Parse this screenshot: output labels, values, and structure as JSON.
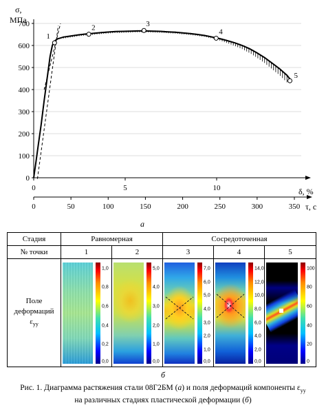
{
  "chart_data": {
    "type": "line",
    "ylabel_symbol": "σ,",
    "ylabel_unit": "МПа",
    "xlabel_delta": "δ, %",
    "xlabel_tau": "τ, с",
    "ylim": [
      0,
      700
    ],
    "y_ticks": [
      "0",
      "100",
      "200",
      "300",
      "400",
      "500",
      "600",
      "700"
    ],
    "delta_ticks": [
      "0",
      "5",
      "10"
    ],
    "delta_tick_values": [
      0,
      5,
      10
    ],
    "tau_ticks": [
      "0",
      "50",
      "100",
      "150",
      "200",
      "250",
      "300",
      "350"
    ],
    "tau_tick_values": [
      0,
      50,
      100,
      150,
      200,
      250,
      300,
      350
    ],
    "tau_lim": [
      0,
      350
    ],
    "curve_tau": [
      0,
      3,
      6,
      10,
      14,
      18,
      22,
      25,
      28,
      32,
      40,
      50,
      60,
      70,
      80,
      90,
      100,
      110,
      120,
      130,
      140,
      150,
      160,
      170,
      180,
      190,
      200,
      210,
      220,
      230,
      240,
      250,
      260,
      270,
      280,
      290,
      300,
      310,
      320,
      330,
      340,
      346
    ],
    "curve_sigma": [
      0,
      70,
      145,
      240,
      350,
      450,
      550,
      600,
      620,
      630,
      638,
      643,
      648,
      652,
      655,
      658,
      661,
      663,
      664,
      665,
      666,
      666,
      665,
      664,
      662,
      660,
      657,
      654,
      650,
      645,
      638,
      631,
      622,
      612,
      600,
      585,
      566,
      545,
      520,
      495,
      465,
      440
    ],
    "points": [
      {
        "label": "1",
        "tau": 28,
        "sigma": 612
      },
      {
        "label": "2",
        "tau": 74,
        "sigma": 651
      },
      {
        "label": "3",
        "tau": 148,
        "sigma": 668
      },
      {
        "label": "4",
        "tau": 245,
        "sigma": 633
      },
      {
        "label": "5",
        "tau": 344,
        "sigma": 440
      }
    ],
    "sublabel": "а"
  },
  "table": {
    "header_stage": "Стадия",
    "header_point": "№ точки",
    "stage_uniform": "Равномерная",
    "stage_concentrated": "Сосредоточенная",
    "row_field_label_1": "Поле",
    "row_field_label_2": "деформаций",
    "row_field_label_3": "ε",
    "row_field_label_sub": "yy",
    "columns": [
      {
        "point": "1",
        "scale": [
          "1,0",
          "0,8",
          "0,6",
          "0,4",
          "0,2",
          "0,0"
        ]
      },
      {
        "point": "2",
        "scale": [
          "5,0",
          "4,0",
          "3,0",
          "2,0",
          "1,0",
          "0,0"
        ]
      },
      {
        "point": "3",
        "scale": [
          "7,0",
          "6,0",
          "5,0",
          "4,0",
          "3,0",
          "2,0",
          "1,0",
          "0,0"
        ]
      },
      {
        "point": "4",
        "scale": [
          "14,0",
          "12,0",
          "10,0",
          "8,0",
          "6,0",
          "4,0",
          "2,0",
          "0,0"
        ]
      },
      {
        "point": "5",
        "scale": [
          "100",
          "80",
          "60",
          "40",
          "20",
          "0"
        ]
      }
    ],
    "sublabel": "б"
  },
  "caption": {
    "line1_a": "Рис. 1. Диаграмма растяжения стали 08Г2БМ (",
    "line1_a_letter": "а",
    "line1_b": ") и поля деформаций компоненты ε",
    "line1_sub": "yy",
    "line2_a": "на различных стадиях пластической деформации (",
    "line2_letter": "б",
    "line2_b": ")"
  }
}
